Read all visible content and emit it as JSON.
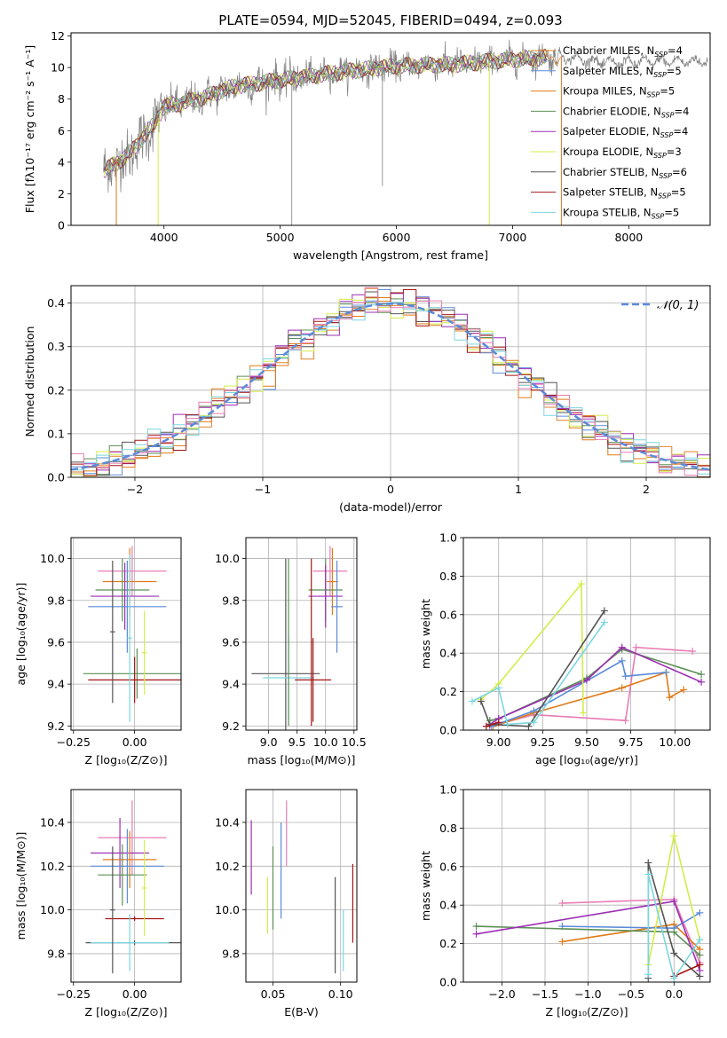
{
  "chart_data": [
    {
      "id": "spectrum",
      "type": "line",
      "title": "PLATE=0594, MJD=52045, FIBERID=0494, z=0.093",
      "xlabel": "wavelength [Angstrom, rest frame]",
      "ylabel": "Flux [fλ10⁻¹⁷ erg cm⁻² s⁻¹ A⁻¹]",
      "xlim": [
        3200,
        8700
      ],
      "ylim": [
        0,
        12.2
      ],
      "xticks": [
        4000,
        5000,
        6000,
        7000,
        8000
      ],
      "yticks": [
        0,
        2,
        4,
        6,
        8,
        10,
        12
      ],
      "grid": false,
      "legend_position": "top-right",
      "observed_spectrum_color": "#808080",
      "continuum_anchors": {
        "x": [
          3500,
          3700,
          3900,
          4000,
          4300,
          4600,
          5000,
          5500,
          6000,
          6500,
          7000,
          7400,
          7800,
          8300
        ],
        "y": [
          3.5,
          4.5,
          6.3,
          7.5,
          8.0,
          8.8,
          9.2,
          9.7,
          10.1,
          10.2,
          10.5,
          10.7,
          10.3,
          10.4
        ]
      },
      "legend": [
        {
          "label": "Chabrier MILES, N_SSP=4",
          "color": "#E0822E"
        },
        {
          "label": "Salpeter MILES, N_SSP=5",
          "color": "#5B8BD8"
        },
        {
          "label": "Kroupa MILES, N_SSP=5",
          "color": "#E07B18"
        },
        {
          "label": "Chabrier ELODIE, N_SSP=4",
          "color": "#5B8F55"
        },
        {
          "label": "Salpeter ELODIE, N_SSP=4",
          "color": "#9C2FB3"
        },
        {
          "label": "Kroupa ELODIE, N_SSP=3",
          "color": "#D4EC4A"
        },
        {
          "label": "Chabrier STELIB, N_SSP=6",
          "color": "#555555"
        },
        {
          "label": "Salpeter STELIB, N_SSP=5",
          "color": "#A31515"
        },
        {
          "label": "Kroupa STELIB, N_SSP=5",
          "color": "#7AD6E0"
        }
      ]
    },
    {
      "id": "residuals",
      "type": "line",
      "xlabel": "(data-model)/error",
      "ylabel": "Normed distribution",
      "xlim": [
        -2.5,
        2.5
      ],
      "ylim": [
        0,
        0.44
      ],
      "xticks": [
        -2,
        -1,
        0,
        1,
        2
      ],
      "yticks": [
        0.0,
        0.1,
        0.2,
        0.3,
        0.4
      ],
      "grid": true,
      "legend_position": "top-right",
      "normal_curve": {
        "label": "𝒩(0, 1)",
        "color": "#5B8BD8",
        "mean": 0,
        "sigma": 1
      }
    },
    {
      "id": "age-vs-z",
      "type": "scatter",
      "xlabel": "Z [log₁₀(Z/Z⊙)]",
      "ylabel": "age  [log₁₀(age/yr)]",
      "xlim": [
        -0.26,
        0.19
      ],
      "ylim": [
        9.18,
        10.1
      ],
      "xticks": [
        -0.25,
        0.0
      ],
      "yticks": [
        9.2,
        9.4,
        9.6,
        9.8,
        10.0
      ],
      "grid": true,
      "series": [
        {
          "color": "#E87DB5",
          "x": -0.01,
          "y": 9.94,
          "xerr": 0.14,
          "yerr": 0.12
        },
        {
          "color": "#E07B18",
          "x": -0.02,
          "y": 9.89,
          "xerr": 0.11,
          "yerr": 0.16
        },
        {
          "color": "#5B8F55",
          "x": -0.05,
          "y": 9.85,
          "xerr": 0.11,
          "yerr": 0.15
        },
        {
          "color": "#9C2FB3",
          "x": -0.04,
          "y": 9.82,
          "xerr": 0.14,
          "yerr": 0.16
        },
        {
          "color": "#5B8BD8",
          "x": -0.03,
          "y": 9.77,
          "xerr": 0.16,
          "yerr": 0.22
        },
        {
          "color": "#5B8F55",
          "x": 0.01,
          "y": 9.45,
          "xerr": 0.22,
          "yerr": 0.12
        },
        {
          "color": "#A31515",
          "x": 0.0,
          "y": 9.42,
          "xerr": 0.19,
          "yerr": 0.11
        },
        {
          "color": "#D4EC4A",
          "x": 0.04,
          "y": 9.55,
          "xerr": 0.01,
          "yerr": 0.2
        },
        {
          "color": "#555555",
          "x": -0.09,
          "y": 9.65,
          "xerr": 0.01,
          "yerr": 0.34
        },
        {
          "color": "#7AD6E0",
          "x": -0.02,
          "y": 9.62,
          "xerr": 0.01,
          "yerr": 0.4
        }
      ]
    },
    {
      "id": "age-vs-mass",
      "type": "scatter",
      "xlabel": "mass [log₁₀(M/M⊙)]",
      "ylabel": "",
      "xlim": [
        8.6,
        10.55
      ],
      "ylim": [
        9.18,
        10.1
      ],
      "xticks": [
        9.0,
        9.5,
        10.0,
        10.5
      ],
      "yticks": [
        9.2,
        9.4,
        9.6,
        9.8,
        10.0
      ],
      "grid": true,
      "series": [
        {
          "color": "#E87DB5",
          "x": 10.08,
          "y": 9.94,
          "xerr": 0.3,
          "yerr": 0.12
        },
        {
          "color": "#E07B18",
          "x": 10.12,
          "y": 9.89,
          "xerr": 0.1,
          "yerr": 0.16
        },
        {
          "color": "#5B8F55",
          "x": 10.0,
          "y": 9.85,
          "xerr": 0.3,
          "yerr": 0.15
        },
        {
          "color": "#9C2FB3",
          "x": 10.0,
          "y": 9.82,
          "xerr": 0.3,
          "yerr": 0.15
        },
        {
          "color": "#5B8BD8",
          "x": 10.2,
          "y": 9.77,
          "xerr": 0.1,
          "yerr": 0.22
        },
        {
          "color": "#555555",
          "x": 9.3,
          "y": 9.45,
          "xerr": 0.6,
          "yerr": 0.55
        },
        {
          "color": "#7AD6E0",
          "x": 9.35,
          "y": 9.43,
          "xerr": 0.45,
          "yerr": 0.2
        },
        {
          "color": "#A31515",
          "x": 9.78,
          "y": 9.42,
          "xerr": 0.32,
          "yerr": 0.2
        },
        {
          "color": "#5B8F55",
          "x": 9.35,
          "y": 9.6,
          "xerr": 0.01,
          "yerr": 0.4
        },
        {
          "color": "#A31515",
          "x": 9.75,
          "y": 9.6,
          "xerr": 0.01,
          "yerr": 0.4
        }
      ]
    },
    {
      "id": "weight-vs-age",
      "type": "line",
      "xlabel": "age  [log₁₀(age/yr)]",
      "ylabel": "mass weight",
      "xlim": [
        8.8,
        10.2
      ],
      "ylim": [
        0,
        1.0
      ],
      "xticks": [
        9.0,
        9.25,
        9.5,
        9.75,
        10.0
      ],
      "yticks": [
        0.0,
        0.2,
        0.4,
        0.6,
        0.8,
        1.0
      ],
      "grid": true,
      "series": [
        {
          "color": "#E87DB5",
          "x": [
            8.95,
            9.2,
            9.72,
            9.78,
            10.1
          ],
          "y": [
            0.02,
            0.08,
            0.05,
            0.43,
            0.41
          ]
        },
        {
          "color": "#E07B18",
          "x": [
            8.97,
            9.2,
            9.7,
            9.95,
            9.97,
            10.05
          ],
          "y": [
            0.02,
            0.09,
            0.22,
            0.3,
            0.17,
            0.21
          ]
        },
        {
          "color": "#5B8BD8",
          "x": [
            8.96,
            9.2,
            9.7,
            9.72,
            9.95
          ],
          "y": [
            0.02,
            0.1,
            0.36,
            0.28,
            0.3
          ]
        },
        {
          "color": "#5B8F55",
          "x": [
            8.95,
            9.0,
            9.5,
            9.7,
            10.15
          ],
          "y": [
            0.05,
            0.06,
            0.27,
            0.42,
            0.29
          ]
        },
        {
          "color": "#9C2FB3",
          "x": [
            8.95,
            9.0,
            9.5,
            9.7,
            10.15
          ],
          "y": [
            0.03,
            0.06,
            0.26,
            0.43,
            0.25
          ]
        },
        {
          "color": "#D4EC4A",
          "x": [
            8.9,
            9.0,
            9.47,
            9.48
          ],
          "y": [
            0.16,
            0.24,
            0.76,
            0.09
          ]
        },
        {
          "color": "#555555",
          "x": [
            8.9,
            8.95,
            9.17,
            9.6
          ],
          "y": [
            0.15,
            0.03,
            0.02,
            0.62
          ]
        },
        {
          "color": "#A31515",
          "x": [
            8.93,
            9.0
          ],
          "y": [
            0.02,
            0.04
          ]
        },
        {
          "color": "#7AD6E0",
          "x": [
            8.85,
            9.0,
            9.05,
            9.2,
            9.6
          ],
          "y": [
            0.15,
            0.22,
            0.03,
            0.04,
            0.56
          ]
        }
      ]
    },
    {
      "id": "mass-vs-z",
      "type": "scatter",
      "xlabel": "Z [log₁₀(Z/Z⊙)]",
      "ylabel": "mass [log₁₀(M/M⊙)]",
      "xlim": [
        -0.26,
        0.19
      ],
      "ylim": [
        9.67,
        10.55
      ],
      "xticks": [
        -0.25,
        0.0
      ],
      "yticks": [
        9.8,
        10.0,
        10.2,
        10.4
      ],
      "grid": true,
      "series": [
        {
          "color": "#E87DB5",
          "x": -0.01,
          "y": 10.33,
          "xerr": 0.14,
          "yerr": 0.17
        },
        {
          "color": "#9C2FB3",
          "x": -0.06,
          "y": 10.26,
          "xerr": 0.12,
          "yerr": 0.16
        },
        {
          "color": "#E07B18",
          "x": -0.02,
          "y": 10.23,
          "xerr": 0.11,
          "yerr": 0.13
        },
        {
          "color": "#5B8BD8",
          "x": -0.03,
          "y": 10.2,
          "xerr": 0.15,
          "yerr": 0.17
        },
        {
          "color": "#5B8F55",
          "x": -0.05,
          "y": 10.16,
          "xerr": 0.1,
          "yerr": 0.14
        },
        {
          "color": "#A31515",
          "x": 0.0,
          "y": 9.96,
          "xerr": 0.12,
          "yerr": 0.01
        },
        {
          "color": "#555555",
          "x": 0.0,
          "y": 9.85,
          "xerr": 0.2,
          "yerr": 0.01
        },
        {
          "color": "#7AD6E0",
          "x": -0.02,
          "y": 9.85,
          "xerr": 0.16,
          "yerr": 0.13
        },
        {
          "color": "#D4EC4A",
          "x": 0.04,
          "y": 10.1,
          "xerr": 0.01,
          "yerr": 0.22
        },
        {
          "color": "#555555",
          "x": -0.09,
          "y": 10.0,
          "xerr": 0.01,
          "yerr": 0.29
        }
      ]
    },
    {
      "id": "mass-vs-ebv",
      "type": "scatter",
      "xlabel": "E(B-V)",
      "ylabel": "",
      "xlim": [
        0.03,
        0.112
      ],
      "ylim": [
        9.67,
        10.55
      ],
      "xticks": [
        0.05,
        0.1
      ],
      "yticks": [
        9.8,
        10.0,
        10.2,
        10.4
      ],
      "grid": true,
      "series": [
        {
          "color": "#9C2FB3",
          "x": 0.034,
          "y": 10.24,
          "yerr": 0.17
        },
        {
          "color": "#D4EC4A",
          "x": 0.046,
          "y": 10.02,
          "yerr": 0.13
        },
        {
          "color": "#5B8F55",
          "x": 0.05,
          "y": 10.1,
          "yerr": 0.19
        },
        {
          "color": "#5B8BD8",
          "x": 0.056,
          "y": 10.18,
          "yerr": 0.22
        },
        {
          "color": "#E87DB5",
          "x": 0.06,
          "y": 10.35,
          "yerr": 0.15
        },
        {
          "color": "#555555",
          "x": 0.096,
          "y": 9.93,
          "yerr": 0.22
        },
        {
          "color": "#7AD6E0",
          "x": 0.102,
          "y": 9.86,
          "yerr": 0.14
        },
        {
          "color": "#A31515",
          "x": 0.109,
          "y": 10.03,
          "yerr": 0.18
        }
      ]
    },
    {
      "id": "weight-vs-z",
      "type": "line",
      "xlabel": "Z [log₁₀(Z/Z⊙)]",
      "ylabel": "mass weight",
      "xlim": [
        -2.45,
        0.42
      ],
      "ylim": [
        0,
        1.0
      ],
      "xticks": [
        -2.0,
        -1.5,
        -1.0,
        -0.5,
        0.0
      ],
      "yticks": [
        0.0,
        0.2,
        0.4,
        0.6,
        0.8,
        1.0
      ],
      "grid": true,
      "series": [
        {
          "color": "#E87DB5",
          "x": [
            -1.3,
            0.0,
            0.3
          ],
          "y": [
            0.41,
            0.43,
            0.1
          ]
        },
        {
          "color": "#E07B18",
          "x": [
            -1.3,
            0.0,
            0.3
          ],
          "y": [
            0.21,
            0.3,
            0.17
          ]
        },
        {
          "color": "#5B8BD8",
          "x": [
            -1.3,
            0.0,
            0.3
          ],
          "y": [
            0.29,
            0.28,
            0.36
          ]
        },
        {
          "color": "#5B8F55",
          "x": [
            -2.3,
            0.0,
            0.3
          ],
          "y": [
            0.29,
            0.26,
            0.14
          ]
        },
        {
          "color": "#9C2FB3",
          "x": [
            -2.3,
            0.0,
            0.3
          ],
          "y": [
            0.25,
            0.42,
            0.06
          ]
        },
        {
          "color": "#D4EC4A",
          "x": [
            -0.3,
            0.0,
            0.3
          ],
          "y": [
            0.09,
            0.76,
            0.22
          ]
        },
        {
          "color": "#555555",
          "x": [
            -0.3,
            -0.3,
            0.0,
            0.3
          ],
          "y": [
            0.02,
            0.62,
            0.15,
            0.03
          ]
        },
        {
          "color": "#A31515",
          "x": [
            0.0,
            0.3
          ],
          "y": [
            0.03,
            0.09
          ]
        },
        {
          "color": "#7AD6E0",
          "x": [
            -0.3,
            -0.3,
            0.0,
            0.3
          ],
          "y": [
            0.04,
            0.56,
            0.02,
            0.22
          ]
        }
      ]
    }
  ]
}
